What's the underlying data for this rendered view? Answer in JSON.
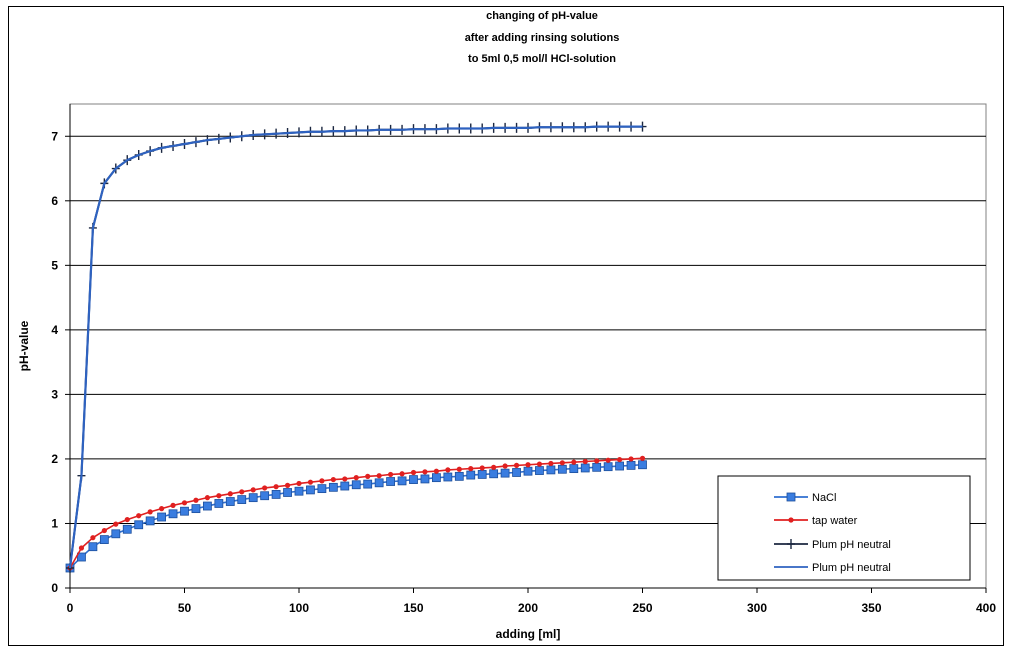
{
  "chart_data": {
    "type": "line",
    "title": [
      "changing of pH-value",
      "after adding rinsing solutions",
      "to 5ml 0,5 mol/l HCl-solution"
    ],
    "xlabel": "adding [ml]",
    "ylabel": "pH-value",
    "xlim": [
      0,
      400
    ],
    "ylim": [
      0,
      7.5
    ],
    "xticks": [
      0,
      50,
      100,
      150,
      200,
      250,
      300,
      350,
      400
    ],
    "yticks": [
      0,
      1,
      2,
      3,
      4,
      5,
      6,
      7
    ],
    "grid": "horizontal",
    "legend_position": "bottom-right",
    "x": [
      0,
      5,
      10,
      15,
      20,
      25,
      30,
      35,
      40,
      45,
      50,
      55,
      60,
      65,
      70,
      75,
      80,
      85,
      90,
      95,
      100,
      105,
      110,
      115,
      120,
      125,
      130,
      135,
      140,
      145,
      150,
      155,
      160,
      165,
      170,
      175,
      180,
      185,
      190,
      195,
      200,
      205,
      210,
      215,
      220,
      225,
      230,
      235,
      240,
      245,
      250
    ],
    "series": [
      {
        "name": "NaCl",
        "color": "#2f6fd0",
        "marker": "square",
        "values": [
          0.31,
          0.48,
          0.64,
          0.75,
          0.84,
          0.91,
          0.98,
          1.04,
          1.1,
          1.15,
          1.19,
          1.23,
          1.27,
          1.31,
          1.34,
          1.37,
          1.4,
          1.43,
          1.45,
          1.48,
          1.5,
          1.52,
          1.54,
          1.56,
          1.58,
          1.6,
          1.61,
          1.63,
          1.65,
          1.66,
          1.68,
          1.69,
          1.71,
          1.72,
          1.73,
          1.75,
          1.76,
          1.77,
          1.78,
          1.79,
          1.81,
          1.82,
          1.83,
          1.84,
          1.85,
          1.86,
          1.87,
          1.88,
          1.89,
          1.9,
          1.91
        ]
      },
      {
        "name": "tap water",
        "color": "#e02020",
        "marker": "dot",
        "values": [
          0.31,
          0.62,
          0.78,
          0.89,
          0.99,
          1.06,
          1.12,
          1.18,
          1.23,
          1.28,
          1.32,
          1.36,
          1.4,
          1.43,
          1.46,
          1.49,
          1.52,
          1.55,
          1.57,
          1.59,
          1.62,
          1.64,
          1.66,
          1.68,
          1.69,
          1.71,
          1.73,
          1.74,
          1.76,
          1.77,
          1.79,
          1.8,
          1.81,
          1.83,
          1.84,
          1.85,
          1.86,
          1.87,
          1.89,
          1.9,
          1.91,
          1.92,
          1.93,
          1.94,
          1.95,
          1.96,
          1.97,
          1.98,
          1.99,
          2.0,
          2.01
        ]
      },
      {
        "name": "Plum pH neutral",
        "color": "#1b2740",
        "marker": "plus",
        "values": [
          0.31,
          1.74,
          5.58,
          6.27,
          6.5,
          6.63,
          6.71,
          6.77,
          6.82,
          6.85,
          6.88,
          6.91,
          6.94,
          6.96,
          6.98,
          7.0,
          7.02,
          7.03,
          7.04,
          7.05,
          7.06,
          7.07,
          7.07,
          7.08,
          7.08,
          7.09,
          7.09,
          7.1,
          7.1,
          7.1,
          7.11,
          7.11,
          7.11,
          7.12,
          7.12,
          7.12,
          7.12,
          7.13,
          7.13,
          7.13,
          7.13,
          7.14,
          7.14,
          7.14,
          7.14,
          7.14,
          7.15,
          7.15,
          7.15,
          7.15,
          7.15
        ]
      },
      {
        "name": "Plum pH neutral",
        "color": "#2e62c0",
        "marker": "none",
        "values": [
          0.31,
          1.74,
          5.58,
          6.27,
          6.5,
          6.63,
          6.71,
          6.77,
          6.82,
          6.85,
          6.88,
          6.91,
          6.94,
          6.96,
          6.98,
          7.0,
          7.02,
          7.03,
          7.04,
          7.05,
          7.06,
          7.07,
          7.07,
          7.08,
          7.08,
          7.09,
          7.09,
          7.1,
          7.1,
          7.1,
          7.11,
          7.11,
          7.11,
          7.12,
          7.12,
          7.12,
          7.12,
          7.13,
          7.13,
          7.13,
          7.13,
          7.14,
          7.14,
          7.14,
          7.14,
          7.14,
          7.15,
          7.15,
          7.15,
          7.15,
          7.15
        ]
      }
    ]
  }
}
